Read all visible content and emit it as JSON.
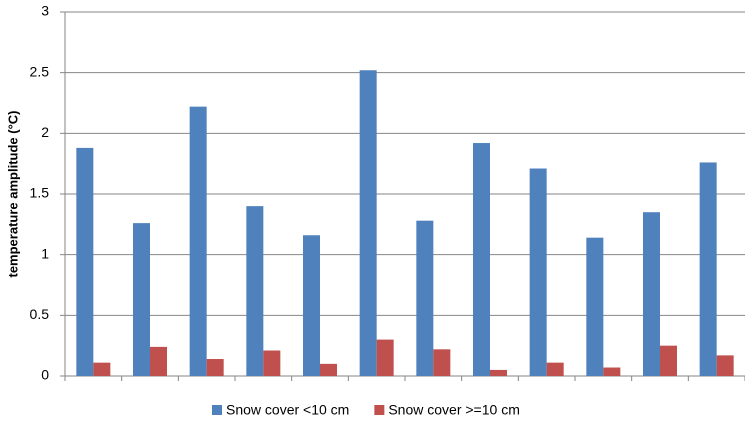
{
  "chart_data": {
    "type": "bar",
    "y_label": "temperature amplitude (°C)",
    "categories": [
      null,
      null,
      null,
      null,
      null,
      null,
      null,
      null,
      null,
      null,
      null,
      null
    ],
    "series": [
      {
        "name": "Snow cover <10 cm",
        "color": "#4f81bd",
        "values": [
          1.88,
          1.26,
          2.22,
          1.4,
          1.16,
          2.52,
          1.28,
          1.92,
          1.71,
          1.14,
          1.35,
          1.76
        ]
      },
      {
        "name": "Snow cover >=10 cm",
        "color": "#c0504d",
        "values": [
          0.11,
          0.24,
          0.14,
          0.21,
          0.1,
          0.3,
          0.22,
          0.05,
          0.11,
          0.07,
          0.25,
          0.17
        ]
      }
    ],
    "ylim": [
      0,
      3
    ],
    "yticks": [
      0,
      0.5,
      1,
      1.5,
      2,
      2.5,
      3
    ],
    "grid": true,
    "legend": "bottom"
  }
}
